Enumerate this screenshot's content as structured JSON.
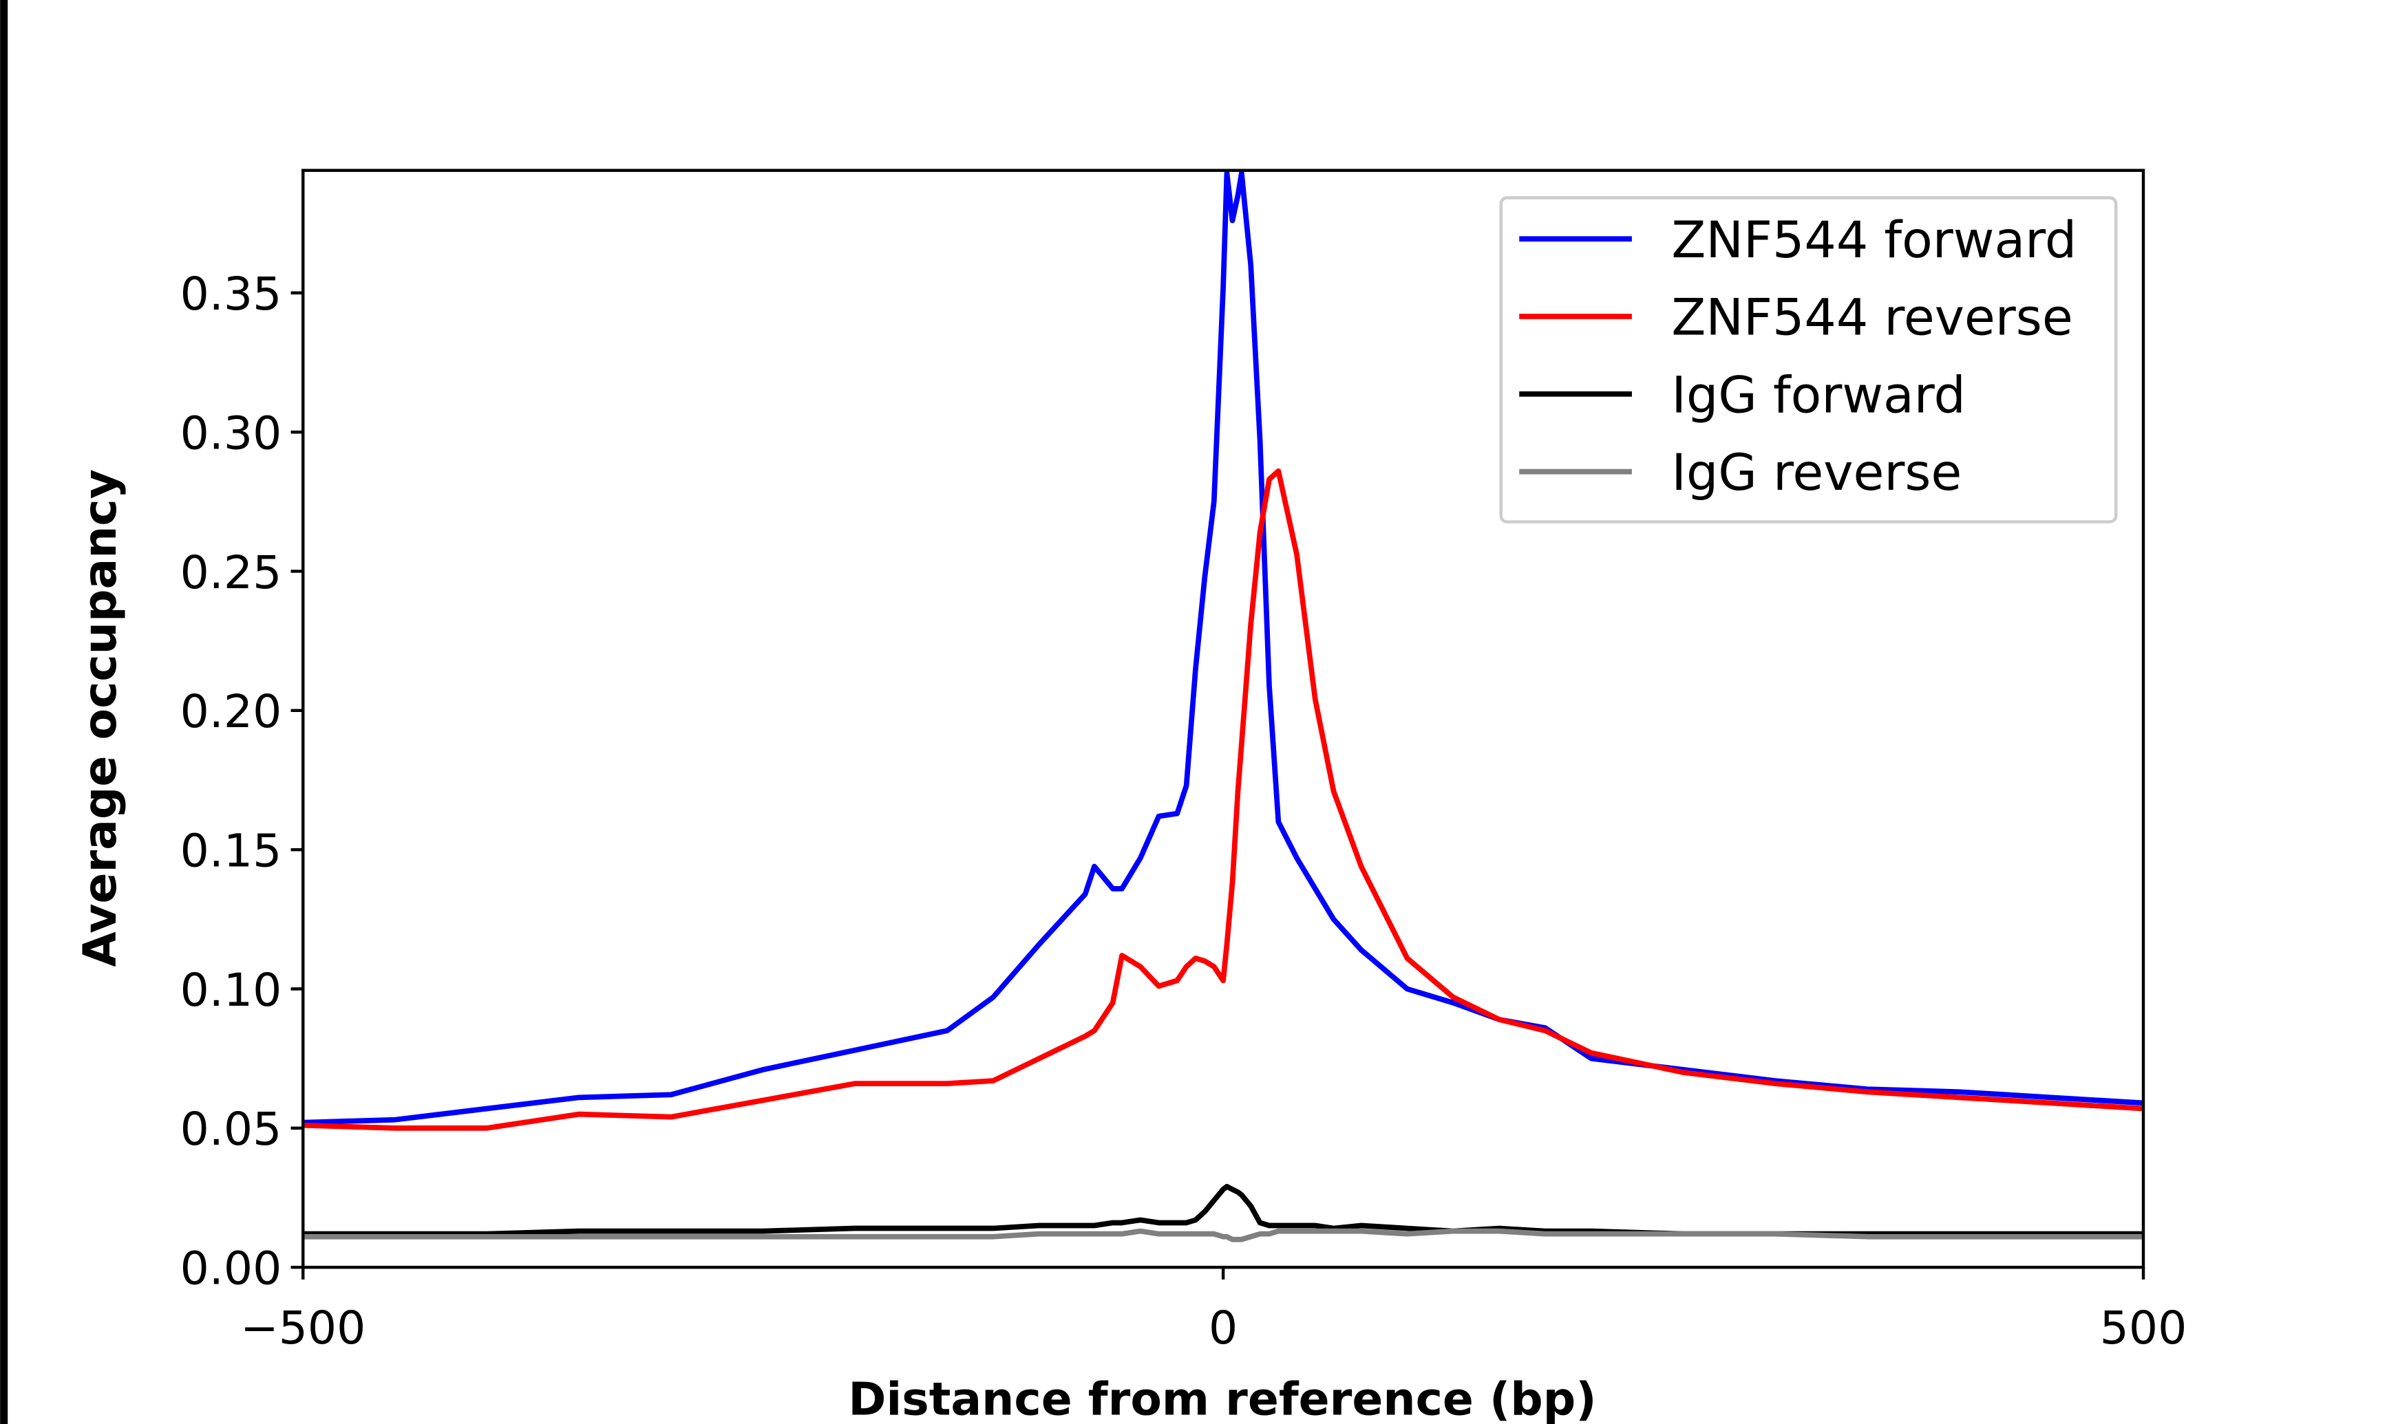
{
  "chart_data": {
    "type": "line",
    "xlabel": "Distance from reference (bp)",
    "ylabel": "Average occupancy",
    "x": [
      -500,
      -450,
      -400,
      -350,
      -300,
      -250,
      -200,
      -150,
      -125,
      -100,
      -75,
      -70,
      -60,
      -55,
      -45,
      -35,
      -25,
      -20,
      -15,
      -10,
      -5,
      0,
      2,
      5,
      8,
      10,
      15,
      20,
      25,
      30,
      40,
      50,
      60,
      75,
      100,
      125,
      150,
      175,
      200,
      250,
      300,
      350,
      400,
      450,
      500
    ],
    "series": [
      {
        "name": "ZNF544 forward",
        "color": "#0000ff",
        "values": [
          0.052,
          0.053,
          0.057,
          0.061,
          0.062,
          0.071,
          0.078,
          0.085,
          0.097,
          0.116,
          0.134,
          0.144,
          0.136,
          0.136,
          0.147,
          0.162,
          0.163,
          0.173,
          0.215,
          0.248,
          0.275,
          0.352,
          0.393,
          0.376,
          0.385,
          0.393,
          0.36,
          0.297,
          0.209,
          0.16,
          0.147,
          0.136,
          0.125,
          0.114,
          0.1,
          0.095,
          0.089,
          0.086,
          0.075,
          0.071,
          0.067,
          0.064,
          0.063,
          0.061,
          0.059
        ]
      },
      {
        "name": "ZNF544 reverse",
        "color": "#ff0000",
        "values": [
          0.051,
          0.05,
          0.05,
          0.055,
          0.054,
          0.06,
          0.066,
          0.066,
          0.067,
          0.075,
          0.083,
          0.085,
          0.095,
          0.112,
          0.108,
          0.101,
          0.103,
          0.108,
          0.111,
          0.11,
          0.108,
          0.103,
          0.116,
          0.138,
          0.171,
          0.188,
          0.231,
          0.264,
          0.283,
          0.286,
          0.256,
          0.204,
          0.171,
          0.144,
          0.111,
          0.097,
          0.089,
          0.085,
          0.077,
          0.07,
          0.066,
          0.063,
          0.061,
          0.059,
          0.057
        ]
      },
      {
        "name": "IgG forward",
        "color": "#000000",
        "values": [
          0.012,
          0.012,
          0.012,
          0.013,
          0.013,
          0.013,
          0.014,
          0.014,
          0.014,
          0.015,
          0.015,
          0.015,
          0.016,
          0.016,
          0.017,
          0.016,
          0.016,
          0.016,
          0.017,
          0.02,
          0.024,
          0.028,
          0.029,
          0.028,
          0.027,
          0.026,
          0.022,
          0.016,
          0.015,
          0.015,
          0.015,
          0.015,
          0.014,
          0.015,
          0.014,
          0.013,
          0.014,
          0.013,
          0.013,
          0.012,
          0.012,
          0.012,
          0.012,
          0.012,
          0.012
        ]
      },
      {
        "name": "IgG reverse",
        "color": "#808080",
        "values": [
          0.011,
          0.011,
          0.011,
          0.011,
          0.011,
          0.011,
          0.011,
          0.011,
          0.011,
          0.012,
          0.012,
          0.012,
          0.012,
          0.012,
          0.013,
          0.012,
          0.012,
          0.012,
          0.012,
          0.012,
          0.012,
          0.011,
          0.011,
          0.01,
          0.01,
          0.01,
          0.011,
          0.012,
          0.012,
          0.013,
          0.013,
          0.013,
          0.013,
          0.013,
          0.012,
          0.013,
          0.013,
          0.012,
          0.012,
          0.012,
          0.012,
          0.011,
          0.011,
          0.011,
          0.011
        ]
      }
    ],
    "xlim": [
      -500,
      500
    ],
    "ylim": [
      0,
      0.394
    ],
    "xticks": [
      {
        "value": -500,
        "label": "−500"
      },
      0,
      500
    ],
    "yticks": [
      {
        "value": 0,
        "label": "0.00"
      },
      0.05,
      {
        "value": 0.1,
        "label": "0.10"
      },
      0.15,
      {
        "value": 0.2,
        "label": "0.20"
      },
      0.25,
      {
        "value": 0.3,
        "label": "0.30"
      },
      0.35
    ],
    "grid": false,
    "legend": "upper right"
  }
}
